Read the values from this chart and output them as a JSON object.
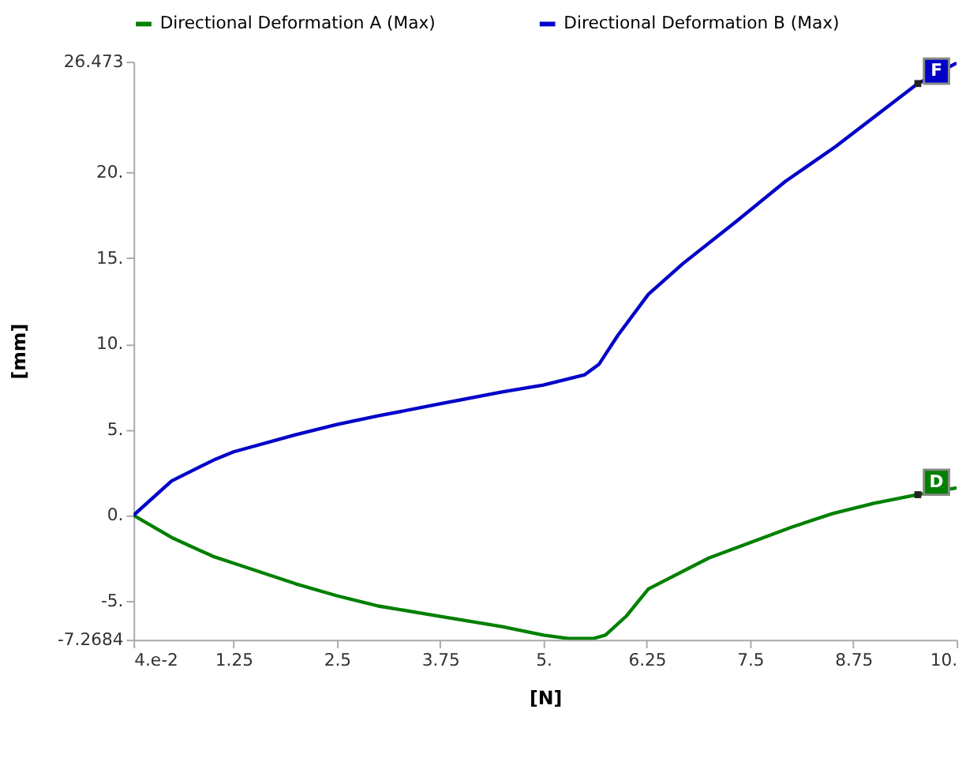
{
  "chart_data": {
    "type": "line",
    "xlabel": "[N]",
    "ylabel": "[mm]",
    "xlim": [
      0.04,
      10
    ],
    "ylim": [
      -7.2684,
      26.473
    ],
    "xticks": [
      {
        "value": 0.04,
        "label": "4.e-2"
      },
      1.25,
      2.5,
      3.75,
      {
        "value": 5,
        "label": "5."
      },
      6.25,
      7.5,
      8.75,
      {
        "value": 10,
        "label": "10."
      }
    ],
    "yticks": [
      -7.2684,
      {
        "value": -5,
        "label": "-5."
      },
      {
        "value": 0,
        "label": "0."
      },
      {
        "value": 5,
        "label": "5."
      },
      {
        "value": 10,
        "label": "10."
      },
      {
        "value": 15,
        "label": "15."
      },
      {
        "value": 20,
        "label": "20."
      },
      26.473
    ],
    "grid": false,
    "legend": "top",
    "marker": "none",
    "line_style": "solid",
    "series": [
      {
        "name": "Directional Deformation A (Max)",
        "color": "#008000",
        "x": [
          0.04,
          0.5,
          1.0,
          1.25,
          2.0,
          2.5,
          3.0,
          3.75,
          4.5,
          5.0,
          5.3,
          5.6,
          5.75,
          6.0,
          6.27,
          7.0,
          7.5,
          8.0,
          8.5,
          9.0,
          9.53,
          10
        ],
        "values": [
          0,
          -1.3,
          -2.4,
          -2.8,
          -4.0,
          -4.7,
          -5.3,
          -5.9,
          -6.5,
          -7.0,
          -7.2,
          -7.2,
          -7.0,
          -5.9,
          -4.3,
          -2.5,
          -1.6,
          -0.7,
          0.1,
          0.7,
          1.2,
          1.6
        ]
      },
      {
        "name": "Directional Deformation B (Max)",
        "color": "#0000c8",
        "x": [
          0.04,
          0.5,
          1.0,
          1.25,
          2.0,
          2.5,
          3.0,
          3.75,
          4.5,
          5.0,
          5.5,
          5.67,
          5.9,
          6.27,
          6.69,
          7.32,
          7.93,
          8.53,
          9.53,
          10
        ],
        "values": [
          0,
          2.0,
          3.2,
          3.7,
          4.7,
          5.3,
          5.8,
          6.5,
          7.2,
          7.6,
          8.2,
          8.8,
          10.5,
          12.9,
          14.7,
          17.1,
          19.5,
          21.5,
          25.2,
          26.4
        ]
      }
    ],
    "annotations": [
      {
        "text": "D",
        "x": 9.53,
        "y": 1.2
      },
      {
        "text": "F",
        "x": 9.53,
        "y": 25.2
      }
    ]
  }
}
